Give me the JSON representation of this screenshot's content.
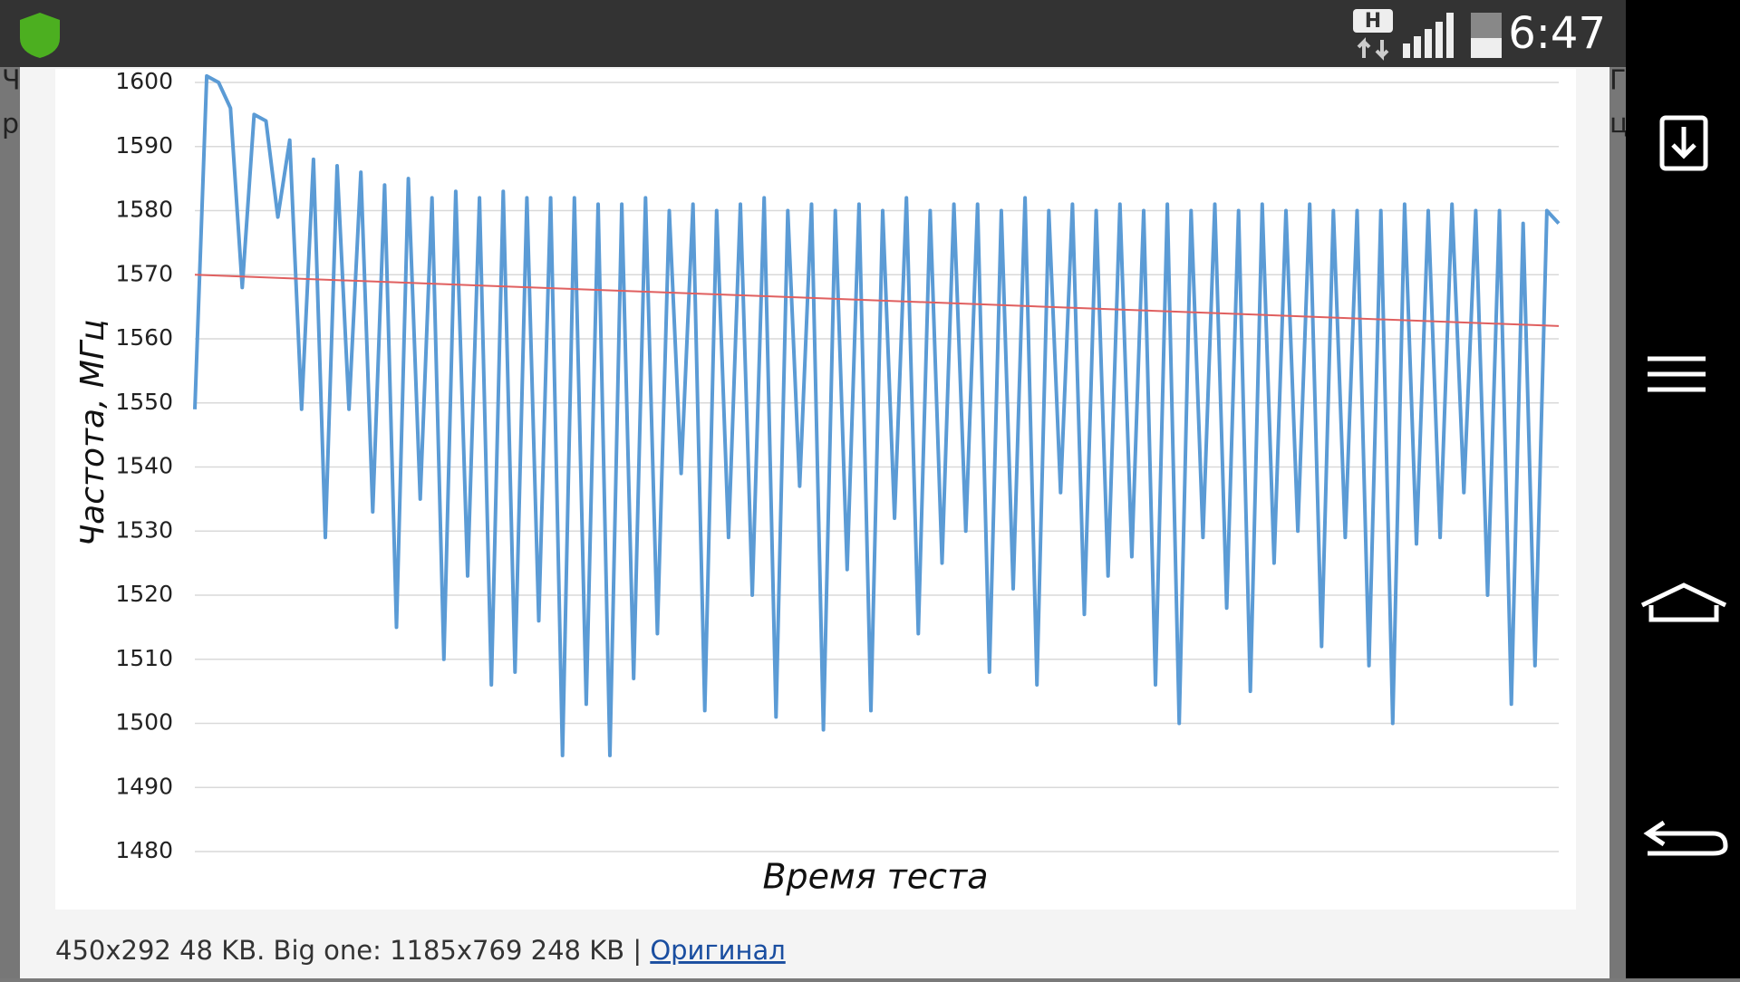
{
  "status_bar": {
    "time": "6:47",
    "network": "H"
  },
  "background_text": [
    "Ч",
    "р",
    "Г",
    "ц"
  ],
  "chart_data": {
    "type": "line",
    "ylabel": "Частота, МГц",
    "xlabel": "Время теста",
    "ylim": [
      1480,
      1600
    ],
    "yticks": [
      1480,
      1490,
      1500,
      1510,
      1520,
      1530,
      1540,
      1550,
      1560,
      1570,
      1580,
      1590,
      1600
    ],
    "grid": true,
    "series": [
      {
        "color": "#5b9bd5",
        "values": [
          1549,
          1601,
          1600,
          1596,
          1568,
          1595,
          1594,
          1579,
          1591,
          1549,
          1588,
          1529,
          1587,
          1549,
          1586,
          1533,
          1584,
          1515,
          1585,
          1535,
          1582,
          1510,
          1583,
          1523,
          1582,
          1506,
          1583,
          1508,
          1582,
          1516,
          1582,
          1495,
          1582,
          1503,
          1581,
          1495,
          1581,
          1507,
          1582,
          1514,
          1580,
          1539,
          1581,
          1502,
          1580,
          1529,
          1581,
          1520,
          1582,
          1501,
          1580,
          1537,
          1581,
          1499,
          1580,
          1524,
          1581,
          1502,
          1580,
          1532,
          1582,
          1514,
          1580,
          1525,
          1581,
          1530,
          1581,
          1508,
          1580,
          1521,
          1582,
          1506,
          1580,
          1536,
          1581,
          1517,
          1580,
          1523,
          1581,
          1526,
          1580,
          1506,
          1581,
          1500,
          1580,
          1529,
          1581,
          1518,
          1580,
          1505,
          1581,
          1525,
          1580,
          1530,
          1581,
          1512,
          1580,
          1529,
          1580,
          1509,
          1580,
          1500,
          1581,
          1528,
          1580,
          1529,
          1581,
          1536,
          1580,
          1520,
          1580,
          1503,
          1578,
          1509,
          1580,
          1578
        ]
      },
      {
        "color": "#e06060",
        "values": [
          1570,
          1562
        ]
      }
    ]
  },
  "caption": {
    "text": "450x292 48 KB. Big one: 1185x769 248 KB | ",
    "link": "Оригинал"
  }
}
